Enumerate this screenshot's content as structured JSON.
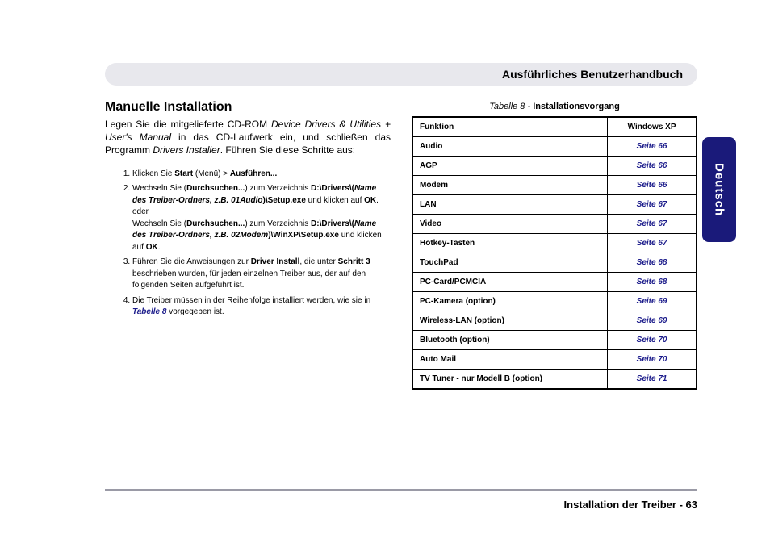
{
  "header": {
    "title": "Ausführliches Benutzerhandbuch"
  },
  "sideTab": {
    "label": "Deutsch",
    "bg": "#1a1a7a",
    "fg": "#ffffff"
  },
  "left": {
    "heading": "Manuelle Installation",
    "intro_pre": "Legen Sie die mitgelieferte CD-ROM ",
    "intro_it1": "Device Drivers & Utilities + User's Manual",
    "intro_mid": " in das CD-Laufwerk ein, und schließen das Programm ",
    "intro_it2": "Drivers Installer",
    "intro_post": ". Führen Sie diese Schritte aus:",
    "steps": {
      "s1_a": "Klicken Sie ",
      "s1_b": "Start",
      "s1_c": " (Menü) > ",
      "s1_d": "Ausführen...",
      "s2_a": "Wechseln Sie (",
      "s2_b": "Durchsuchen...",
      "s2_c": ") zum Verzeichnis ",
      "s2_path1a": "D:\\Drivers\\(",
      "s2_path1b": "Name des Treiber-Ordners, z.B. 01Audio",
      "s2_path1c": ")\\Setup.exe",
      "s2_d": " und klicken auf ",
      "s2_ok": "OK",
      "s2_e": ".",
      "s2_or": "oder",
      "s2_f": "Wechseln Sie (",
      "s2_g": "Durchsuchen...",
      "s2_h": ") zum Verzeichnis ",
      "s2_path2a": "D:\\Drivers\\(",
      "s2_path2b": "Name des Treiber-Ordners, z.B. 02Modem",
      "s2_path2c": ")\\WinXP\\Setup.exe",
      "s2_i": " und klicken auf ",
      "s2_ok2": "OK",
      "s2_j": ".",
      "s3_a": "Führen Sie die Anweisungen zur ",
      "s3_b": "Driver Install",
      "s3_c": ", die unter ",
      "s3_d": "Schritt 3",
      "s3_e": " beschrieben wurden, für jeden einzelnen Treiber aus, der auf den folgenden Seiten aufgeführt ist.",
      "s4_a": "Die Treiber müssen in der Reihenfolge installiert werden, wie sie in ",
      "s4_b": "Tabelle 8",
      "s4_c": " vorgegeben ist."
    }
  },
  "right": {
    "caption_it": "Tabelle 8 - ",
    "caption_b": "Installationsvorgang",
    "columns": {
      "c1": "Funktion",
      "c2": "Windows XP"
    },
    "rows": [
      {
        "f": "Audio",
        "p": "Seite 66"
      },
      {
        "f": "AGP",
        "p": "Seite 66"
      },
      {
        "f": "Modem",
        "p": "Seite 66"
      },
      {
        "f": "LAN",
        "p": "Seite 67"
      },
      {
        "f": "Video",
        "p": "Seite 67"
      },
      {
        "f": "Hotkey-Tasten",
        "p": "Seite 67"
      },
      {
        "f": "TouchPad",
        "p": "Seite 68"
      },
      {
        "f": "PC-Card/PCMCIA",
        "p": "Seite 68"
      },
      {
        "f": "PC-Kamera (option)",
        "p": "Seite 69"
      },
      {
        "f": "Wireless-LAN (option)",
        "p": "Seite 69"
      },
      {
        "f": "Bluetooth (option)",
        "p": "Seite 70"
      },
      {
        "f": "Auto Mail",
        "p": "Seite 70"
      },
      {
        "f": "TV Tuner - nur Modell B (option)",
        "p": "Seite 71"
      }
    ]
  },
  "footer": {
    "text": "Installation der Treiber - 63"
  },
  "colors": {
    "link": "#1a1a8a",
    "rule": "#9a9aa6"
  }
}
